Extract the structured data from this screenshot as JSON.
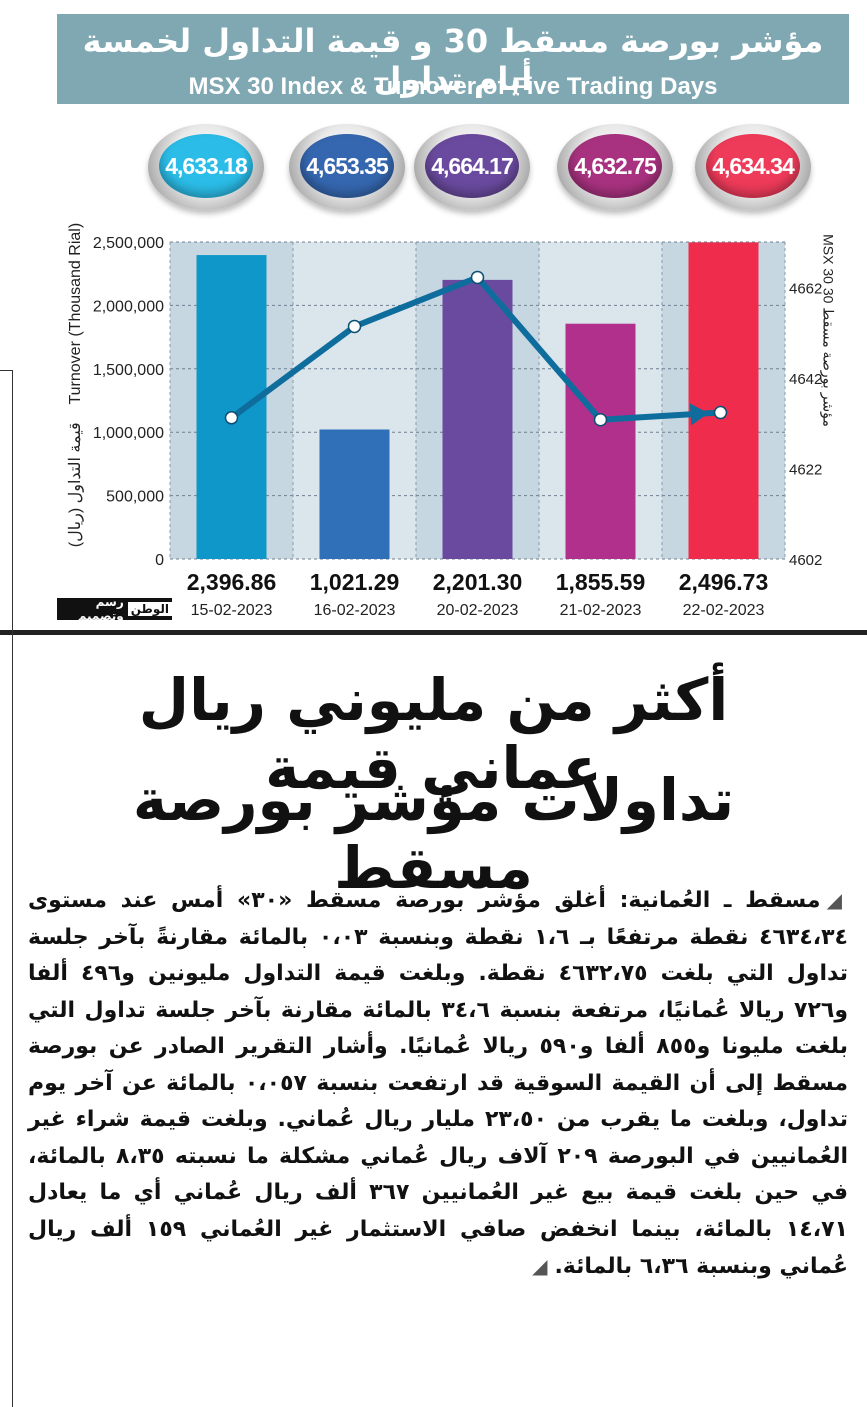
{
  "header": {
    "title_ar": "مؤشر بورصة مسقط 30 و قيمة التداول لخمسة أيام تداول",
    "title_en": "MSX 30 Index & Turnover of Five Trading Days"
  },
  "index_bubbles": [
    "4,633.18",
    "4,653.35",
    "4,664.17",
    "4,632.75",
    "4,634.34"
  ],
  "chart_data": {
    "type": "bar+line",
    "categories": [
      "15-02-2023",
      "16-02-2023",
      "20-02-2023",
      "21-02-2023",
      "22-02-2023"
    ],
    "series": [
      {
        "name": "Turnover (Thousand Rial)",
        "type": "bar",
        "axis": "left",
        "values": [
          2396.86,
          1021.29,
          2201.3,
          1855.59,
          2496.73
        ],
        "value_labels": [
          "2,396.86",
          "1,021.29",
          "2,201.30",
          "1,855.59",
          "2,496.73"
        ],
        "colors": [
          "#0f97c9",
          "#2f70b8",
          "#6a4a9e",
          "#b0308c",
          "#f02c4c"
        ]
      },
      {
        "name": "MSX 30",
        "type": "line",
        "axis": "right",
        "values": [
          4633.18,
          4653.35,
          4664.17,
          4632.75,
          4634.34
        ],
        "color": "#0e6d9c"
      }
    ],
    "left_axis": {
      "title_en": "Turnover (Thousand Rial)",
      "title_ar": "قيمة التداول (ريال)",
      "ylim": [
        0,
        2500000
      ],
      "ticks": [
        "0",
        "500,000",
        "1,000,000",
        "1,500,000",
        "2,000,000",
        "2,500,000"
      ]
    },
    "right_axis": {
      "title": "MSX 30  مؤشر بورصة مسقط 30",
      "ylim": [
        4602,
        4672
      ],
      "ticks": [
        "4602",
        "4622",
        "4642",
        "4662"
      ]
    },
    "grid": true
  },
  "bubble_colors": [
    "#2bbde8",
    "#3567b0",
    "#6a4a9e",
    "#a8327f",
    "#ef3b5a"
  ],
  "logo": {
    "brand": "الوطن",
    "caption": "رسم وتصميم"
  },
  "headline": {
    "line1": "أكثر من مليوني ريال عماني قيمة",
    "line2": "تداولات مؤشر بورصة مسقط"
  },
  "article": {
    "text": "مسقط ـ العُمانية: أغلق مؤشر بورصة مسقط «٣٠» أمس عند مستوى ٤٦٣٤،٣٤ نقطة مرتفعًا بـ ١،٦ نقطة وبنسبة ٠،٠٣ بالمائة مقارنةً بآخر جلسة تداول التي بلغت ٤٦٣٢،٧٥ نقطة. وبلغت قيمة التداول مليونين و٤٩٦ ألفا و٧٢٦ ريالا عُمانيًا، مرتفعة بنسبة ٣٤،٦ بالمائة مقارنة بآخر جلسة تداول التي بلغت مليونا و٨٥٥ ألفا و٥٩٠ ريالا عُمانيًا. وأشار التقرير الصادر عن بورصة مسقط إلى أن القيمة السوقية قد ارتفعت بنسبة ٠،٠٥٧ بالمائة عن آخر يوم تداول، وبلغت ما يقرب من ٢٣،٥٠ مليار ريال عُماني. وبلغت قيمة شراء غير العُمانيين في البورصة ٢٠٩ آلاف ريال عُماني مشكلة ما نسبته ٨،٣٥ بالمائة، في حين بلغت قيمة بيع غير العُمانيين ٣٦٧ ألف ريال عُماني أي ما يعادل ١٤،٧١ بالمائة، بينما انخفض صافي الاستثمار غير العُماني ١٥٩ ألف ريال عُماني وبنسبة ٦،٣٦ بالمائة."
  }
}
